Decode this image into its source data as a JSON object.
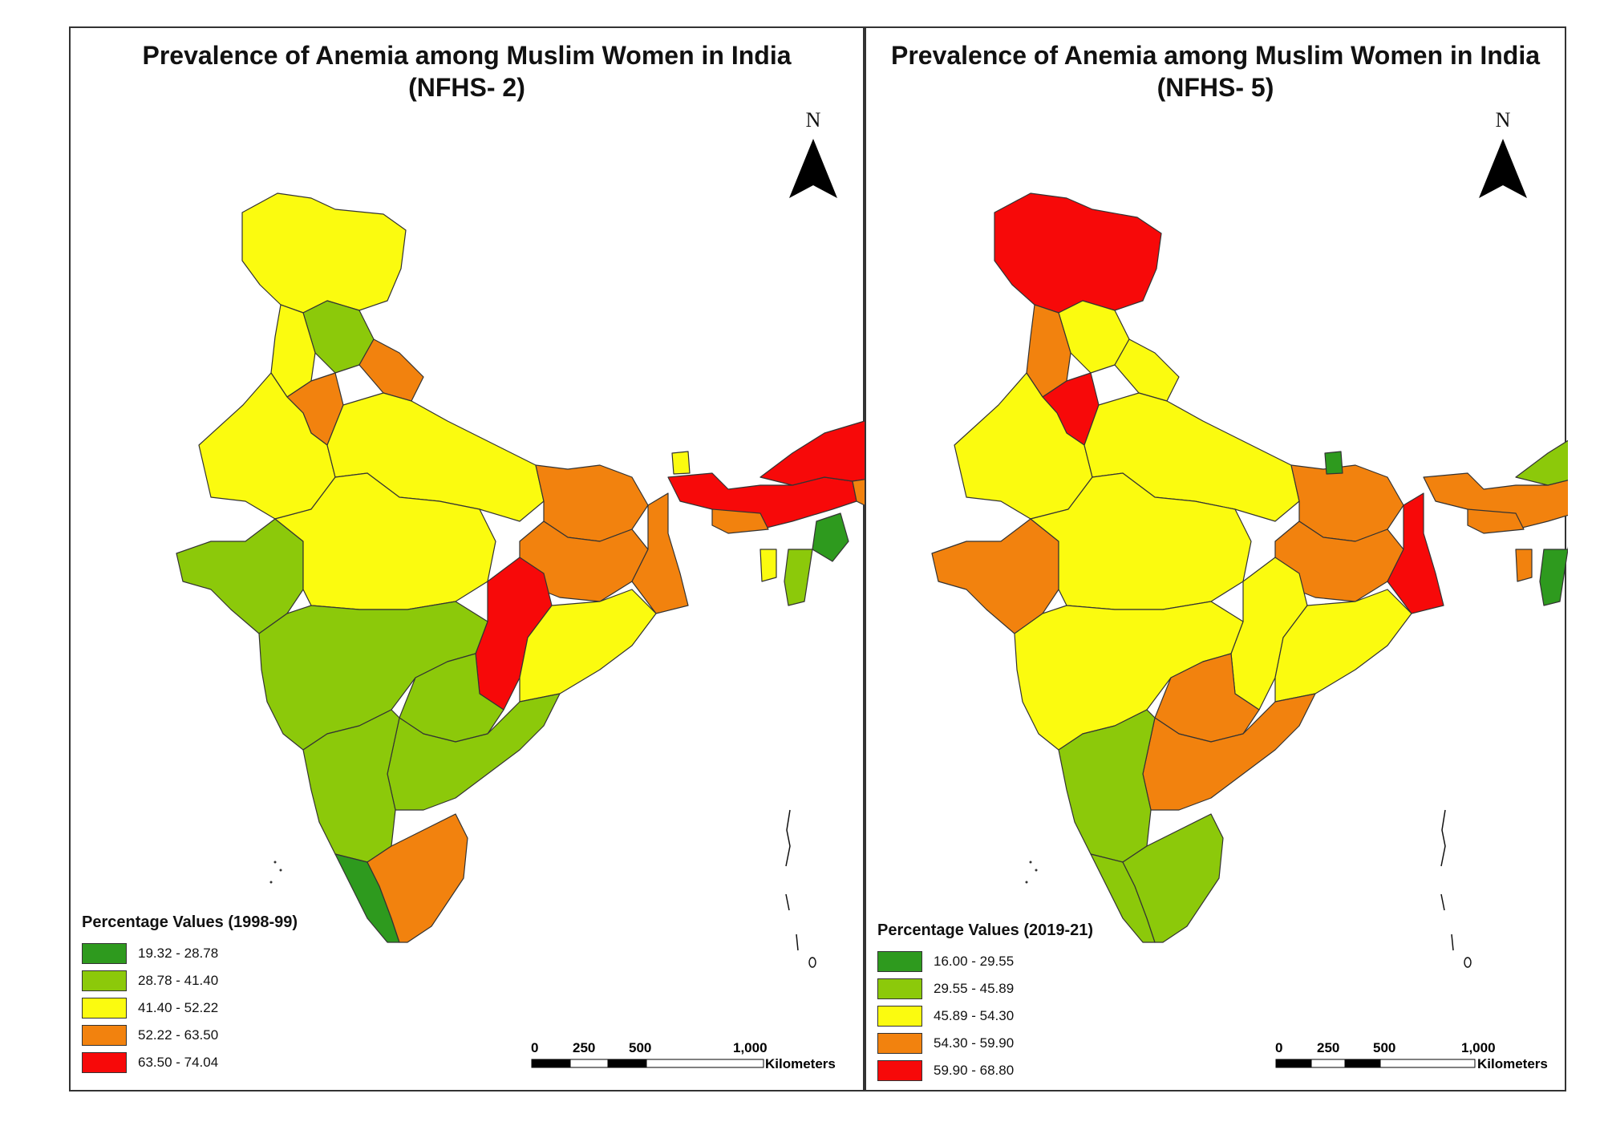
{
  "maps": [
    {
      "title_line1": "Prevalence of Anemia among Muslim Women in India",
      "title_line2": "(NFHS- 2)",
      "north_label": "N",
      "legend": {
        "title": "Percentage Values (1998-99)",
        "classes": [
          {
            "label": "19.32 - 28.78",
            "color": "#2e9a1e"
          },
          {
            "label": "28.78 - 41.40",
            "color": "#8cc90a"
          },
          {
            "label": "41.40 - 52.22",
            "color": "#fbfb0f"
          },
          {
            "label": "52.22 - 63.50",
            "color": "#f2820e"
          },
          {
            "label": "63.50 - 74.04",
            "color": "#f70909"
          }
        ]
      },
      "scale": {
        "ticks": [
          "0",
          "250",
          "500",
          "1,000"
        ],
        "unit": "Kilometers"
      }
    },
    {
      "title_line1": "Prevalence of Anemia among Muslim Women in India",
      "title_line2": "(NFHS- 5)",
      "north_label": "N",
      "legend": {
        "title": "Percentage Values (2019-21)",
        "classes": [
          {
            "label": "16.00 - 29.55",
            "color": "#2e9a1e"
          },
          {
            "label": "29.55 - 45.89",
            "color": "#8cc90a"
          },
          {
            "label": "45.89 - 54.30",
            "color": "#fbfb0f"
          },
          {
            "label": "54.30 - 59.90",
            "color": "#f2820e"
          },
          {
            "label": "59.90 - 68.80",
            "color": "#f70909"
          }
        ]
      },
      "scale": {
        "ticks": [
          "0",
          "250",
          "500",
          "1,000"
        ],
        "unit": "Kilometers"
      }
    }
  ]
}
